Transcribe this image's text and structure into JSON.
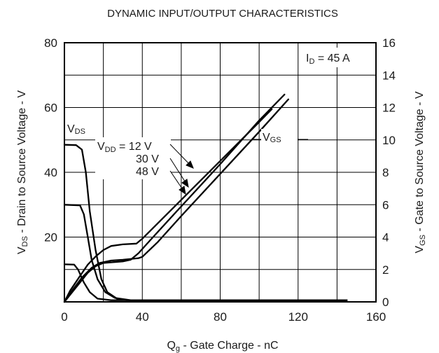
{
  "chart_data": {
    "type": "line",
    "title": "DYNAMIC INPUT/OUTPUT CHARACTERISTICS",
    "xlabel": {
      "q": "Q",
      "sub": "g",
      "rest": " - Gate Charge - nC"
    },
    "ylabel_left": {
      "v": "V",
      "sub": "DS",
      "rest": " - Drain to Source Voltage - V"
    },
    "ylabel_right": {
      "v": "V",
      "sub": "GS",
      "rest": " - Gate to Source Voltage - V"
    },
    "xlim": [
      0,
      160
    ],
    "ylim_left": [
      0,
      80
    ],
    "ylim_right": [
      0,
      16
    ],
    "x_ticks": [
      "0",
      "40",
      "80",
      "120",
      "160"
    ],
    "y_left_ticks": [
      "80",
      "60",
      "40",
      "20"
    ],
    "y_right_ticks": [
      "16",
      "14",
      "12",
      "10",
      "8",
      "6",
      "4",
      "2",
      "0"
    ],
    "grid": true,
    "condition": {
      "i": "I",
      "sub": "D",
      "rest": " = 45 A"
    },
    "annotations": {
      "vds": {
        "v": "V",
        "sub": "DS"
      },
      "vgs": {
        "v": "V",
        "sub": "GS"
      },
      "vdd": {
        "v": "V",
        "sub": "DD",
        "rest": " = 12 V"
      },
      "v30": "30 V",
      "v48": "48 V"
    },
    "series": [
      {
        "axis": "left",
        "points": [
          [
            0,
            48.5
          ],
          [
            6,
            48.4
          ],
          [
            9,
            47
          ],
          [
            11,
            40
          ],
          [
            13,
            28
          ],
          [
            16,
            16
          ],
          [
            19,
            7
          ],
          [
            22,
            3
          ],
          [
            27,
            1
          ],
          [
            32,
            0.5
          ],
          [
            145,
            0.5
          ]
        ]
      },
      {
        "axis": "left",
        "points": [
          [
            0,
            30
          ],
          [
            8,
            29.8
          ],
          [
            10,
            27
          ],
          [
            12,
            20
          ],
          [
            14,
            13
          ],
          [
            17,
            7
          ],
          [
            21,
            3
          ],
          [
            26,
            1.2
          ],
          [
            34,
            0.5
          ],
          [
            145,
            0.5
          ]
        ]
      },
      {
        "axis": "left",
        "points": [
          [
            0,
            11.6
          ],
          [
            5,
            11.5
          ],
          [
            7,
            10
          ],
          [
            10,
            6
          ],
          [
            13,
            3
          ],
          [
            17,
            1
          ],
          [
            24,
            0.5
          ],
          [
            145,
            0.5
          ]
        ]
      },
      {
        "axis": "right",
        "points": [
          [
            0,
            0
          ],
          [
            3,
            0.7
          ],
          [
            8,
            1.6
          ],
          [
            12,
            2.3
          ],
          [
            16,
            2.8
          ],
          [
            20,
            3.2
          ],
          [
            24,
            3.45
          ],
          [
            30,
            3.55
          ],
          [
            37,
            3.6
          ],
          [
            40,
            3.9
          ],
          [
            50,
            5.1
          ],
          [
            60,
            6.3
          ],
          [
            70,
            7.5
          ],
          [
            80,
            8.7
          ],
          [
            90,
            9.9
          ],
          [
            100,
            11.1
          ],
          [
            106.5,
            11.9
          ]
        ]
      },
      {
        "axis": "right",
        "points": [
          [
            0,
            0
          ],
          [
            4,
            0.7
          ],
          [
            9,
            1.5
          ],
          [
            14,
            2.1
          ],
          [
            18,
            2.4
          ],
          [
            24,
            2.55
          ],
          [
            30,
            2.6
          ],
          [
            38,
            2.7
          ],
          [
            40,
            2.78
          ],
          [
            48,
            3.7
          ],
          [
            60,
            5.3
          ],
          [
            80,
            7.9
          ],
          [
            100,
            10.5
          ],
          [
            115,
            12.5
          ]
        ]
      },
      {
        "axis": "right",
        "points": [
          [
            0,
            0
          ],
          [
            4,
            0.6
          ],
          [
            8,
            1.2
          ],
          [
            12,
            1.8
          ],
          [
            16,
            2.2
          ],
          [
            20,
            2.4
          ],
          [
            25,
            2.45
          ],
          [
            30,
            2.5
          ],
          [
            34,
            2.6
          ],
          [
            38,
            3
          ],
          [
            44,
            3.8
          ],
          [
            60,
            5.9
          ],
          [
            80,
            8.5
          ],
          [
            100,
            11.2
          ],
          [
            113,
            12.8
          ]
        ]
      }
    ]
  }
}
